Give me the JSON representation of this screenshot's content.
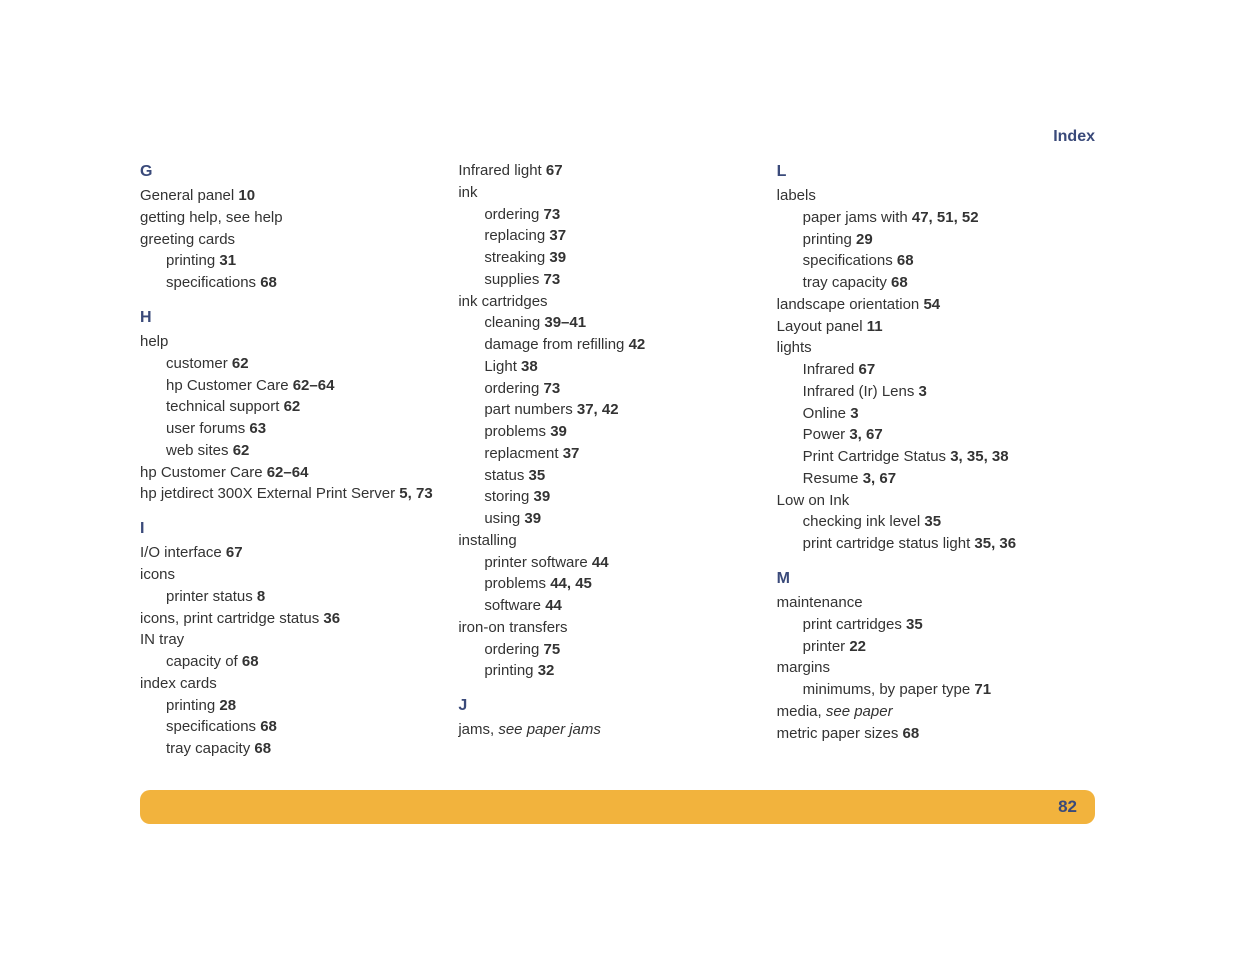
{
  "header": {
    "title": "Index"
  },
  "footer": {
    "page_number": "82"
  },
  "columns": [
    {
      "sections": [
        {
          "heading": "G",
          "entries": [
            {
              "text": "General panel ",
              "pages": "10",
              "indent": 0
            },
            {
              "text": "getting help, see help",
              "pages": "",
              "indent": 0
            },
            {
              "text": "greeting cards",
              "pages": "",
              "indent": 0
            },
            {
              "text": "printing ",
              "pages": "31",
              "indent": 1
            },
            {
              "text": "specifications ",
              "pages": "68",
              "indent": 1
            }
          ]
        },
        {
          "heading": "H",
          "entries": [
            {
              "text": "help",
              "pages": "",
              "indent": 0
            },
            {
              "text": "customer ",
              "pages": "62",
              "indent": 1
            },
            {
              "text": "hp Customer Care ",
              "pages": "62–64",
              "indent": 1
            },
            {
              "text": "technical support ",
              "pages": "62",
              "indent": 1
            },
            {
              "text": "user forums ",
              "pages": "63",
              "indent": 1
            },
            {
              "text": "web sites ",
              "pages": "62",
              "indent": 1
            },
            {
              "text": "hp Customer Care ",
              "pages": "62–64",
              "indent": 0
            },
            {
              "text": "hp jetdirect 300X External Print Server ",
              "pages": "5, 73",
              "indent": 0
            }
          ]
        },
        {
          "heading": "I",
          "entries": [
            {
              "text": "I/O interface ",
              "pages": "67",
              "indent": 0
            },
            {
              "text": "icons",
              "pages": "",
              "indent": 0
            },
            {
              "text": "printer status ",
              "pages": "8",
              "indent": 1
            },
            {
              "text": "icons, print cartridge status ",
              "pages": "36",
              "indent": 0
            },
            {
              "text": "IN tray",
              "pages": "",
              "indent": 0
            },
            {
              "text": "capacity of ",
              "pages": "68",
              "indent": 1
            },
            {
              "text": "index cards",
              "pages": "",
              "indent": 0
            },
            {
              "text": "printing ",
              "pages": "28",
              "indent": 1
            },
            {
              "text": "specifications ",
              "pages": "68",
              "indent": 1
            },
            {
              "text": "tray capacity ",
              "pages": "68",
              "indent": 1
            }
          ]
        }
      ]
    },
    {
      "sections": [
        {
          "heading": "",
          "entries": [
            {
              "text": "Infrared light ",
              "pages": "67",
              "indent": 0
            },
            {
              "text": "ink",
              "pages": "",
              "indent": 0
            },
            {
              "text": "ordering ",
              "pages": "73",
              "indent": 1
            },
            {
              "text": "replacing ",
              "pages": "37",
              "indent": 1
            },
            {
              "text": "streaking ",
              "pages": "39",
              "indent": 1
            },
            {
              "text": "supplies ",
              "pages": "73",
              "indent": 1
            },
            {
              "text": "ink cartridges",
              "pages": "",
              "indent": 0
            },
            {
              "text": "cleaning ",
              "pages": "39–41",
              "indent": 1
            },
            {
              "text": "damage from refilling ",
              "pages": "42",
              "indent": 1
            },
            {
              "text": "Light ",
              "pages": "38",
              "indent": 1
            },
            {
              "text": "ordering ",
              "pages": "73",
              "indent": 1
            },
            {
              "text": "part numbers ",
              "pages": "37, 42",
              "indent": 1
            },
            {
              "text": "problems ",
              "pages": "39",
              "indent": 1
            },
            {
              "text": "replacment ",
              "pages": "37",
              "indent": 1
            },
            {
              "text": "status ",
              "pages": "35",
              "indent": 1
            },
            {
              "text": "storing ",
              "pages": "39",
              "indent": 1
            },
            {
              "text": "using ",
              "pages": "39",
              "indent": 1
            },
            {
              "text": "installing",
              "pages": "",
              "indent": 0
            },
            {
              "text": "printer software ",
              "pages": "44",
              "indent": 1
            },
            {
              "text": "problems ",
              "pages": "44, 45",
              "indent": 1
            },
            {
              "text": "software ",
              "pages": "44",
              "indent": 1
            },
            {
              "text": "iron-on transfers",
              "pages": "",
              "indent": 0
            },
            {
              "text": "ordering ",
              "pages": "75",
              "indent": 1
            },
            {
              "text": "printing ",
              "pages": "32",
              "indent": 1
            }
          ]
        },
        {
          "heading": "J",
          "entries": [
            {
              "text": "jams, ",
              "italic_after": "see paper jams",
              "pages": "",
              "indent": 0
            }
          ]
        }
      ]
    },
    {
      "sections": [
        {
          "heading": "L",
          "entries": [
            {
              "text": "labels",
              "pages": "",
              "indent": 0
            },
            {
              "text": "paper jams with ",
              "pages": "47, 51, 52",
              "indent": 1
            },
            {
              "text": "printing ",
              "pages": "29",
              "indent": 1
            },
            {
              "text": "specifications ",
              "pages": "68",
              "indent": 1
            },
            {
              "text": "tray capacity ",
              "pages": "68",
              "indent": 1
            },
            {
              "text": "landscape orientation ",
              "pages": "54",
              "indent": 0
            },
            {
              "text": "Layout panel ",
              "pages": "11",
              "indent": 0
            },
            {
              "text": "lights",
              "pages": "",
              "indent": 0
            },
            {
              "text": "Infrared ",
              "pages": "67",
              "indent": 1
            },
            {
              "text": "Infrared (Ir) Lens ",
              "pages": "3",
              "indent": 1
            },
            {
              "text": "Online ",
              "pages": "3",
              "indent": 1
            },
            {
              "text": "Power ",
              "pages": "3, 67",
              "indent": 1
            },
            {
              "text": "Print Cartridge Status ",
              "pages": "3, 35, 38",
              "indent": 1
            },
            {
              "text": "Resume ",
              "pages": "3, 67",
              "indent": 1
            },
            {
              "text": "Low on Ink",
              "pages": "",
              "indent": 0
            },
            {
              "text": "checking ink level ",
              "pages": "35",
              "indent": 1
            },
            {
              "text": "print cartridge status light ",
              "pages": "35, 36",
              "indent": 1
            }
          ]
        },
        {
          "heading": "M",
          "entries": [
            {
              "text": "maintenance",
              "pages": "",
              "indent": 0
            },
            {
              "text": "print cartridges ",
              "pages": "35",
              "indent": 1
            },
            {
              "text": "printer ",
              "pages": "22",
              "indent": 1
            },
            {
              "text": "margins",
              "pages": "",
              "indent": 0
            },
            {
              "text": "minimums, by paper type ",
              "pages": "71",
              "indent": 1
            },
            {
              "text": "media, ",
              "italic_after": "see paper",
              "pages": "",
              "indent": 0
            },
            {
              "text": "metric paper sizes ",
              "pages": "68",
              "indent": 0
            }
          ]
        }
      ]
    }
  ]
}
